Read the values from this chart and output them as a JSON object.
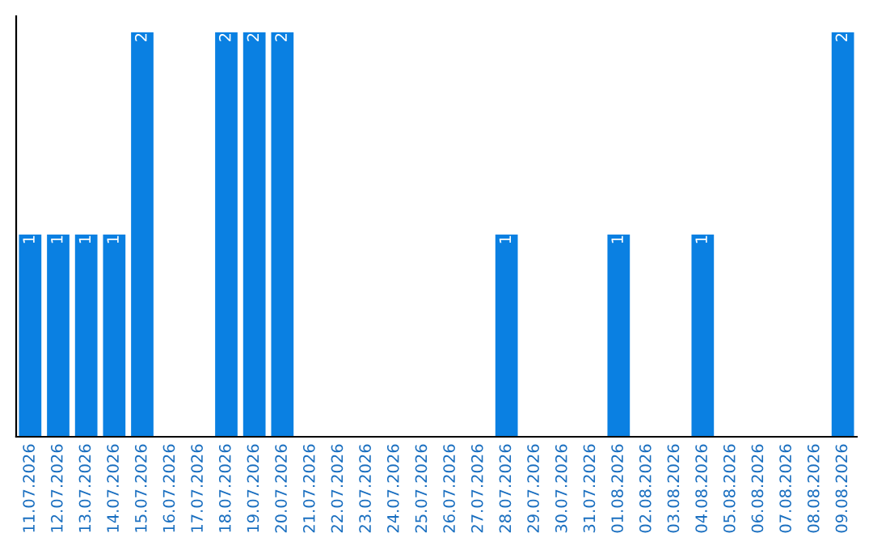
{
  "chart_data": {
    "type": "bar",
    "categories": [
      "11.07.2026",
      "12.07.2026",
      "13.07.2026",
      "14.07.2026",
      "15.07.2026",
      "16.07.2026",
      "17.07.2026",
      "18.07.2026",
      "19.07.2026",
      "20.07.2026",
      "21.07.2026",
      "22.07.2026",
      "23.07.2026",
      "24.07.2026",
      "25.07.2026",
      "26.07.2026",
      "27.07.2026",
      "28.07.2026",
      "29.07.2026",
      "30.07.2026",
      "31.07.2026",
      "01.08.2026",
      "02.08.2026",
      "03.08.2026",
      "04.08.2026",
      "05.08.2026",
      "06.08.2026",
      "07.08.2026",
      "08.08.2026",
      "09.08.2026"
    ],
    "values": [
      1,
      1,
      1,
      1,
      2,
      0,
      0,
      2,
      2,
      2,
      0,
      0,
      0,
      0,
      0,
      0,
      0,
      1,
      0,
      0,
      0,
      1,
      0,
      0,
      1,
      0,
      0,
      0,
      0,
      2
    ],
    "value_labels": [
      "1",
      "1",
      "1",
      "1",
      "2",
      null,
      null,
      "2",
      "2",
      "2",
      null,
      null,
      null,
      null,
      null,
      null,
      null,
      "1",
      null,
      null,
      null,
      "1",
      null,
      null,
      "1",
      null,
      null,
      null,
      null,
      "2"
    ],
    "color": "#0a80e2",
    "ylim": [
      0,
      2.08
    ],
    "tick_labels": "x",
    "grid": false,
    "legend": false
  }
}
